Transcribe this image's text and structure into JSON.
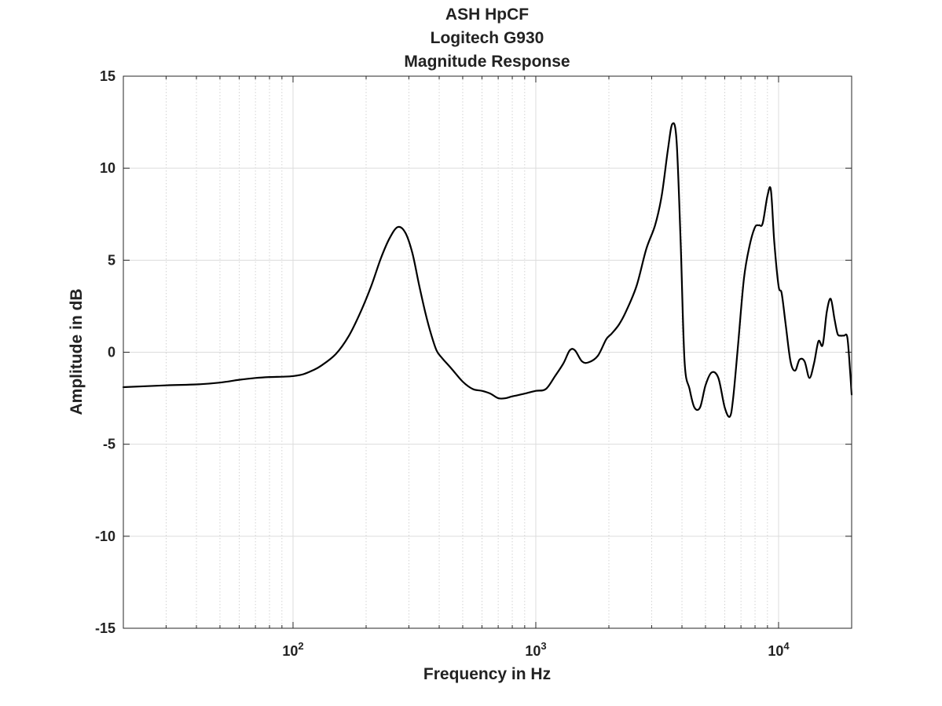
{
  "chart_data": {
    "type": "line",
    "title_lines": [
      "ASH HpCF",
      "Logitech G930",
      "Magnitude Response"
    ],
    "xlabel": "Frequency in Hz",
    "ylabel": "Amplitude in dB",
    "xscale": "log",
    "xlim": [
      20,
      20000
    ],
    "ylim": [
      -15,
      15
    ],
    "grid": true,
    "y_ticks": [
      -15,
      -10,
      -5,
      0,
      5,
      10,
      15
    ],
    "x_ticks": [
      {
        "value": 100,
        "base": "10",
        "exponent": "2"
      },
      {
        "value": 1000,
        "base": "10",
        "exponent": "3"
      },
      {
        "value": 10000,
        "base": "10",
        "exponent": "4"
      }
    ],
    "line_color": "#000000",
    "series": [
      {
        "x": [
          20,
          30,
          40,
          50,
          60,
          70,
          80,
          90,
          100,
          110,
          120,
          130,
          150,
          170,
          190,
          210,
          230,
          250,
          270,
          290,
          310,
          330,
          350,
          370,
          390,
          410,
          450,
          500,
          550,
          600,
          650,
          700,
          750,
          800,
          900,
          1000,
          1100,
          1200,
          1300,
          1380,
          1450,
          1550,
          1650,
          1800,
          1950,
          2050,
          2200,
          2350,
          2600,
          2850,
          3100,
          3300,
          3500,
          3650,
          3800,
          3950,
          4100,
          4300,
          4500,
          4750,
          5000,
          5300,
          5650,
          6000,
          6300,
          6500,
          6800,
          7200,
          7600,
          8000,
          8300,
          8600,
          9000,
          9300,
          9600,
          10000,
          10300,
          10700,
          11200,
          11700,
          12200,
          12800,
          13400,
          14000,
          14600,
          15200,
          15800,
          16400,
          17000,
          17500,
          18000,
          18600,
          19200,
          19700,
          20000
        ],
        "y": [
          -1.9,
          -1.8,
          -1.75,
          -1.65,
          -1.5,
          -1.4,
          -1.35,
          -1.33,
          -1.3,
          -1.2,
          -1.0,
          -0.75,
          -0.1,
          0.9,
          2.2,
          3.6,
          5.1,
          6.2,
          6.8,
          6.5,
          5.4,
          3.7,
          2.2,
          1.0,
          0.1,
          -0.3,
          -0.9,
          -1.6,
          -2.0,
          -2.1,
          -2.25,
          -2.5,
          -2.5,
          -2.4,
          -2.25,
          -2.1,
          -2.0,
          -1.3,
          -0.6,
          0.1,
          0.1,
          -0.5,
          -0.55,
          -0.2,
          0.7,
          1.0,
          1.5,
          2.2,
          3.6,
          5.6,
          6.9,
          8.5,
          11.0,
          12.4,
          11.5,
          6.0,
          -0.5,
          -2.0,
          -3.0,
          -3.0,
          -1.8,
          -1.1,
          -1.4,
          -3.0,
          -3.5,
          -2.5,
          0.3,
          4.0,
          5.8,
          6.8,
          6.9,
          7.0,
          8.5,
          8.8,
          6.0,
          3.6,
          3.2,
          1.5,
          -0.5,
          -1.0,
          -0.4,
          -0.5,
          -1.4,
          -0.6,
          0.6,
          0.4,
          2.2,
          2.9,
          1.8,
          1.0,
          0.9,
          0.9,
          0.8,
          -1.0,
          -2.3
        ]
      }
    ]
  }
}
